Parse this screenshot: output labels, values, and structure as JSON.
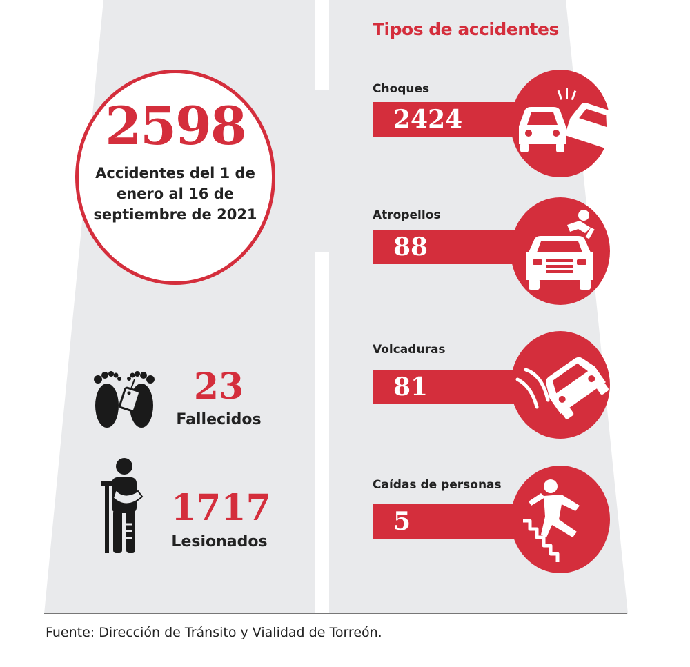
{
  "total": {
    "value": "2598",
    "label_lines": [
      "Accidentes del 1 de",
      "enero al 16 de",
      "septiembre de 2021"
    ]
  },
  "stats": {
    "deaths": {
      "value": "23",
      "label": "Fallecidos",
      "icon": "footprints-toe-tag-icon"
    },
    "injured": {
      "value": "1717",
      "label": "Lesionados",
      "icon": "injured-person-crutch-icon"
    }
  },
  "types": {
    "title": "Tipos de accidentes",
    "items": [
      {
        "label": "Choques",
        "value": "2424",
        "icon": "car-crash-icon"
      },
      {
        "label": "Atropellos",
        "value": "88",
        "icon": "pedestrian-hit-icon"
      },
      {
        "label": "Volcaduras",
        "value": "81",
        "icon": "car-rollover-icon"
      },
      {
        "label": "Caídas de personas",
        "value": "5",
        "icon": "person-falling-stairs-icon"
      }
    ]
  },
  "source": "Fuente: Dirección de Tránsito y Vialidad de Torreón.",
  "colors": {
    "accent": "#d42e3c",
    "road": "#e8e9eb",
    "text": "#222222"
  }
}
